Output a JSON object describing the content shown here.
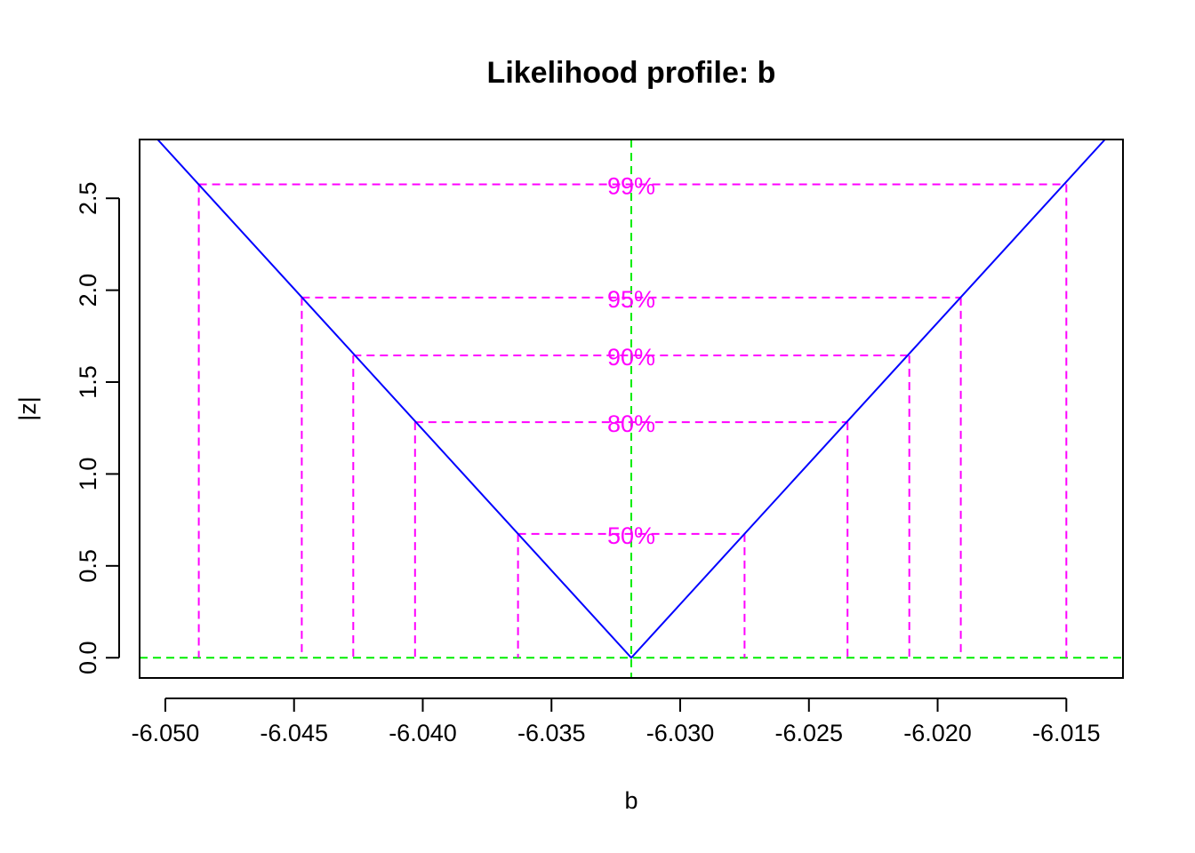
{
  "chart_data": {
    "type": "line",
    "title": "Likelihood profile: b",
    "xlabel": "b",
    "ylabel": "|z|",
    "xlim": [
      -6.051,
      -6.0128
    ],
    "ylim": [
      -0.11,
      2.82
    ],
    "x_ticks": [
      -6.05,
      -6.045,
      -6.04,
      -6.035,
      -6.03,
      -6.025,
      -6.02,
      -6.015
    ],
    "x_tick_labels": [
      "-6.050",
      "-6.045",
      "-6.040",
      "-6.035",
      "-6.030",
      "-6.025",
      "-6.020",
      "-6.015"
    ],
    "y_ticks": [
      0.0,
      0.5,
      1.0,
      1.5,
      2.0,
      2.5
    ],
    "y_tick_labels": [
      "0.0",
      "0.5",
      "1.0",
      "1.5",
      "2.0",
      "2.5"
    ],
    "estimate": -6.0319,
    "series": [
      {
        "x": [
          -6.0503,
          -6.0319,
          -6.0135
        ],
        "y": [
          2.82,
          0.0,
          2.82
        ],
        "color": "#0000ff"
      }
    ],
    "confidence_levels": [
      {
        "label": "50%",
        "z": 0.674,
        "lower": -6.0363,
        "upper": -6.0275
      },
      {
        "label": "80%",
        "z": 1.282,
        "lower": -6.0403,
        "upper": -6.0235
      },
      {
        "label": "90%",
        "z": 1.645,
        "lower": -6.0427,
        "upper": -6.0211
      },
      {
        "label": "95%",
        "z": 1.96,
        "lower": -6.0447,
        "upper": -6.0191
      },
      {
        "label": "99%",
        "z": 2.576,
        "lower": -6.0487,
        "upper": -6.015
      }
    ],
    "colors": {
      "profile": "#0000ff",
      "intervals": "#ff00ff",
      "reference": "#00ee00",
      "axis": "#000000"
    },
    "grid": false,
    "legend": "none"
  }
}
